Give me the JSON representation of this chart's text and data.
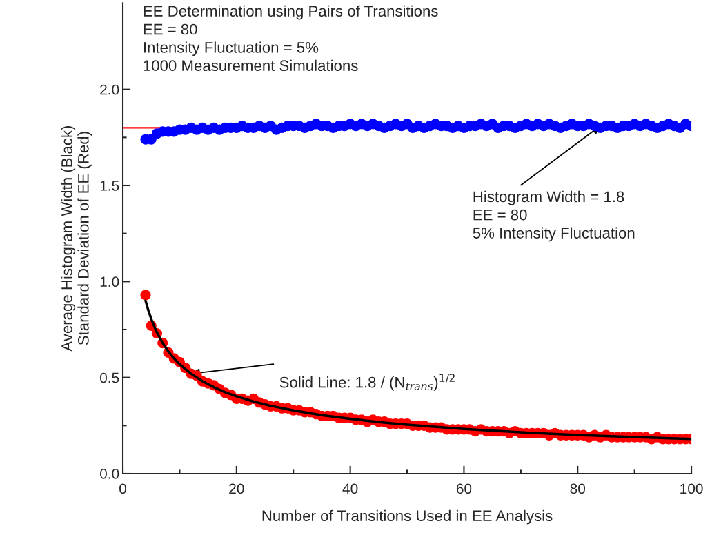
{
  "chart_data": {
    "type": "scatter",
    "xlabel": "Number of Transitions Used in EE Analysis",
    "ylabel": "Average Histogram Width (Black)\nStandard Deviation of EE (Red)",
    "xlim": [
      0,
      100
    ],
    "xticks": [
      0,
      20,
      40,
      60,
      80,
      100
    ],
    "ylim": [
      0,
      2.45
    ],
    "yticks": [
      {
        "value": 0,
        "label": "0.0"
      },
      0.5,
      {
        "value": 1,
        "label": "1.0"
      },
      1.5,
      {
        "value": 2,
        "label": "2.0"
      }
    ],
    "grid": false,
    "marker": "circle",
    "ref_lines": [
      {
        "axis": "y",
        "value": 1.8,
        "color": "#ff0000",
        "line_style": "solid"
      }
    ],
    "annotations": [
      "EE Determination using Pairs of Transitions\nEE = 80\nIntensity Fluctuation = 5%\n1000 Measurement Simulations",
      {
        "text": "Solid Line: 1.8 / (N$_{trans}$)$^{1/2}$",
        "x": 12,
        "y": 0.52
      },
      {
        "text": "Histogram Width = 1.8\nEE = 80\n5% Intensity Fluctuation",
        "x": 84,
        "y": 1.81
      }
    ],
    "x": [
      4,
      5,
      6,
      7,
      8,
      9,
      10,
      11,
      12,
      13,
      14,
      15,
      16,
      17,
      18,
      19,
      20,
      21,
      22,
      23,
      24,
      25,
      26,
      27,
      28,
      29,
      30,
      31,
      32,
      33,
      34,
      35,
      36,
      37,
      38,
      39,
      40,
      41,
      42,
      43,
      44,
      45,
      46,
      47,
      48,
      49,
      50,
      51,
      52,
      53,
      54,
      55,
      56,
      57,
      58,
      59,
      60,
      61,
      62,
      63,
      64,
      65,
      66,
      67,
      68,
      69,
      70,
      71,
      72,
      73,
      74,
      75,
      76,
      77,
      78,
      79,
      80,
      81,
      82,
      83,
      84,
      85,
      86,
      87,
      88,
      89,
      90,
      91,
      92,
      93,
      94,
      95,
      96,
      97,
      98,
      99,
      100
    ],
    "series": [
      {
        "color": "#0000ff",
        "values": [
          1.74,
          1.74,
          1.77,
          1.78,
          1.78,
          1.78,
          1.79,
          1.79,
          1.8,
          1.79,
          1.8,
          1.79,
          1.8,
          1.79,
          1.8,
          1.8,
          1.8,
          1.81,
          1.8,
          1.8,
          1.81,
          1.8,
          1.81,
          1.79,
          1.8,
          1.81,
          1.81,
          1.81,
          1.8,
          1.81,
          1.82,
          1.81,
          1.81,
          1.8,
          1.81,
          1.81,
          1.82,
          1.81,
          1.82,
          1.81,
          1.82,
          1.81,
          1.8,
          1.81,
          1.82,
          1.81,
          1.82,
          1.8,
          1.81,
          1.8,
          1.81,
          1.82,
          1.81,
          1.81,
          1.8,
          1.81,
          1.8,
          1.81,
          1.81,
          1.82,
          1.81,
          1.82,
          1.8,
          1.81,
          1.81,
          1.8,
          1.81,
          1.82,
          1.81,
          1.82,
          1.81,
          1.82,
          1.81,
          1.8,
          1.81,
          1.82,
          1.81,
          1.81,
          1.82,
          1.81,
          1.8,
          1.81,
          1.81,
          1.8,
          1.81,
          1.81,
          1.82,
          1.81,
          1.82,
          1.81,
          1.8,
          1.81,
          1.82,
          1.81,
          1.8,
          1.82,
          1.81
        ]
      },
      {
        "color": "#ff0000",
        "values": [
          0.93,
          0.77,
          0.73,
          0.68,
          0.63,
          0.6,
          0.58,
          0.55,
          0.52,
          0.51,
          0.48,
          0.47,
          0.46,
          0.44,
          0.42,
          0.41,
          0.39,
          0.39,
          0.38,
          0.39,
          0.37,
          0.36,
          0.35,
          0.35,
          0.34,
          0.34,
          0.33,
          0.33,
          0.32,
          0.32,
          0.31,
          0.3,
          0.3,
          0.3,
          0.29,
          0.29,
          0.29,
          0.28,
          0.28,
          0.27,
          0.28,
          0.27,
          0.27,
          0.26,
          0.26,
          0.26,
          0.26,
          0.25,
          0.25,
          0.25,
          0.24,
          0.24,
          0.24,
          0.23,
          0.23,
          0.23,
          0.23,
          0.23,
          0.22,
          0.23,
          0.22,
          0.22,
          0.22,
          0.22,
          0.21,
          0.22,
          0.21,
          0.21,
          0.21,
          0.21,
          0.21,
          0.2,
          0.21,
          0.2,
          0.2,
          0.2,
          0.2,
          0.2,
          0.19,
          0.2,
          0.19,
          0.2,
          0.19,
          0.19,
          0.19,
          0.19,
          0.19,
          0.19,
          0.19,
          0.18,
          0.19,
          0.18,
          0.18,
          0.18,
          0.18,
          0.18,
          0.18
        ]
      },
      {
        "type": "line",
        "color": "#000000",
        "marker": "none",
        "x": [
          4,
          4.5,
          5,
          5.5,
          6,
          7,
          8,
          9,
          10,
          12,
          14,
          16,
          18,
          20,
          23,
          26,
          30,
          35,
          40,
          45,
          50,
          60,
          70,
          80,
          90,
          100
        ],
        "values": [
          0.9,
          0.849,
          0.805,
          0.768,
          0.735,
          0.68,
          0.636,
          0.6,
          0.569,
          0.52,
          0.481,
          0.45,
          0.424,
          0.402,
          0.375,
          0.353,
          0.329,
          0.304,
          0.285,
          0.268,
          0.255,
          0.232,
          0.215,
          0.201,
          0.19,
          0.18
        ]
      }
    ]
  }
}
